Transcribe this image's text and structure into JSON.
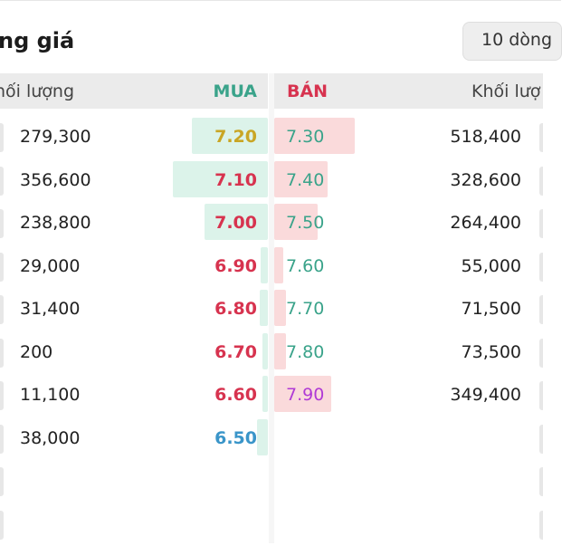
{
  "title": "ng giá",
  "rows_button": "10 dòng",
  "header": {
    "buy_volume": "hối lượng",
    "buy": "MUA",
    "sell": "BÁN",
    "sell_volume": "Khối lượ"
  },
  "colors": {
    "buy_fill": "#dcf3ea",
    "sell_fill": "#fadadb",
    "green": "#3aa38a",
    "red": "#d7334f",
    "yellow": "#c9a625",
    "blue": "#3a95c9",
    "purple": "#b03ad6"
  },
  "rows": [
    {
      "buy_volume": "279,300",
      "buy_price": "7.20",
      "buy_color": "yellow",
      "buy_fill": 0.8,
      "sell_price": "7.30",
      "sell_color": "green",
      "sell_fill": 0.95,
      "sell_volume": "518,400"
    },
    {
      "buy_volume": "356,600",
      "buy_price": "7.10",
      "buy_color": "red",
      "buy_fill": 1.0,
      "sell_price": "7.40",
      "sell_color": "green",
      "sell_fill": 0.63,
      "sell_volume": "328,600"
    },
    {
      "buy_volume": "238,800",
      "buy_price": "7.00",
      "buy_color": "red",
      "buy_fill": 0.67,
      "sell_price": "7.50",
      "sell_color": "green",
      "sell_fill": 0.51,
      "sell_volume": "264,400"
    },
    {
      "buy_volume": "29,000",
      "buy_price": "6.90",
      "buy_color": "red",
      "buy_fill": 0.08,
      "sell_price": "7.60",
      "sell_color": "green",
      "sell_fill": 0.11,
      "sell_volume": "55,000"
    },
    {
      "buy_volume": "31,400",
      "buy_price": "6.80",
      "buy_color": "red",
      "buy_fill": 0.09,
      "sell_price": "7.70",
      "sell_color": "green",
      "sell_fill": 0.14,
      "sell_volume": "71,500"
    },
    {
      "buy_volume": "200",
      "buy_price": "6.70",
      "buy_color": "red",
      "buy_fill": 0.01,
      "sell_price": "7.80",
      "sell_color": "green",
      "sell_fill": 0.14,
      "sell_volume": "73,500"
    },
    {
      "buy_volume": "11,100",
      "buy_price": "6.60",
      "buy_color": "red",
      "buy_fill": 0.03,
      "sell_price": "7.90",
      "sell_color": "purple",
      "sell_fill": 0.67,
      "sell_volume": "349,400"
    },
    {
      "buy_volume": "38,000",
      "buy_price": "6.50",
      "buy_color": "blue",
      "buy_fill": 0.11,
      "sell_price": "",
      "sell_color": "green",
      "sell_fill": 0,
      "sell_volume": ""
    },
    {
      "buy_volume": "",
      "buy_price": "",
      "buy_color": "red",
      "buy_fill": 0,
      "sell_price": "",
      "sell_color": "green",
      "sell_fill": 0,
      "sell_volume": ""
    },
    {
      "buy_volume": "",
      "buy_price": "",
      "buy_color": "red",
      "buy_fill": 0,
      "sell_price": "",
      "sell_color": "green",
      "sell_fill": 0,
      "sell_volume": ""
    }
  ]
}
